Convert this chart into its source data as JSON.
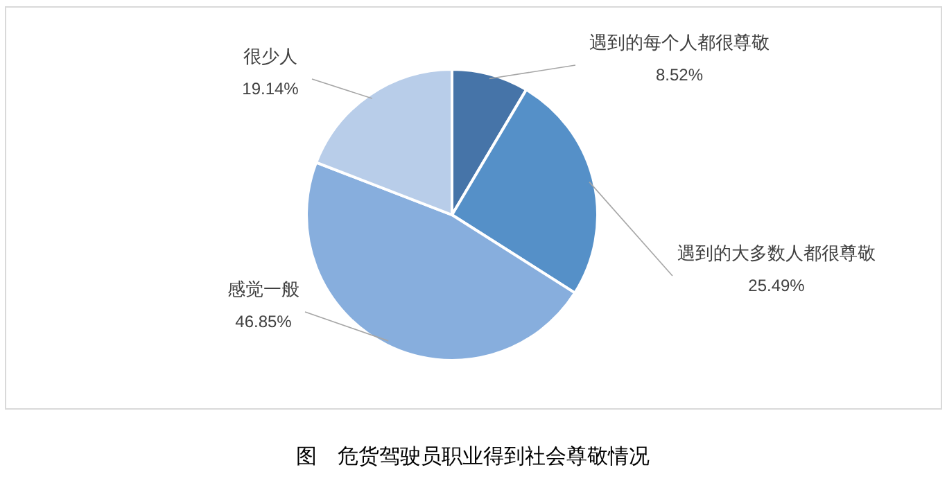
{
  "chart_data": {
    "type": "pie",
    "title": "图　危货驾驶员职业得到社会尊敬情况",
    "categories": [
      "遇到的每个人都很尊敬",
      "遇到的大多数人都很尊敬",
      "感觉一般",
      "很少人"
    ],
    "values": [
      8.52,
      25.49,
      46.85,
      19.14
    ],
    "value_labels": [
      "8.52%",
      "25.49%",
      "46.85%",
      "19.14%"
    ],
    "colors": [
      "#4674a8",
      "#5590c8",
      "#87aedd",
      "#b8cde9"
    ]
  }
}
